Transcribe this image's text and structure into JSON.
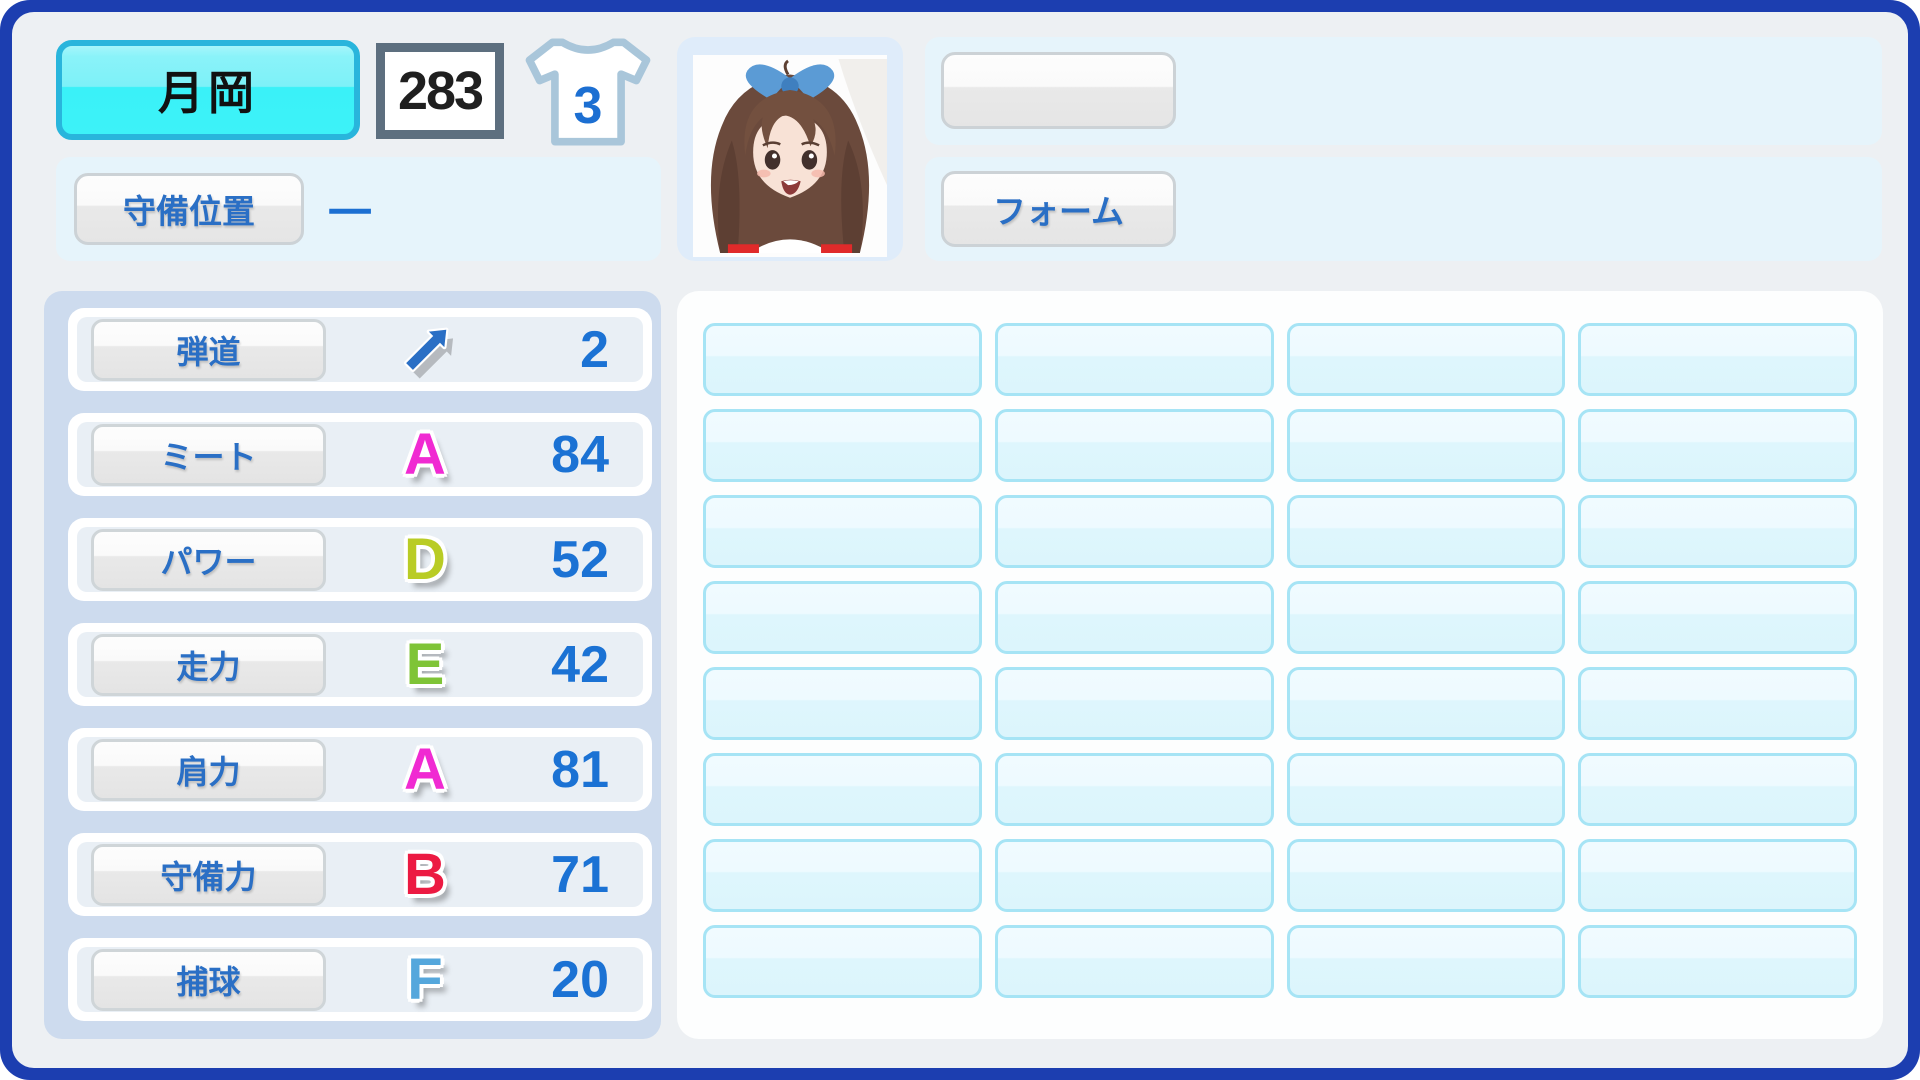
{
  "header": {
    "name": "月岡",
    "id_number": "283",
    "jersey_number": "3",
    "position": {
      "label": "守備位置",
      "value": "一"
    },
    "form": {
      "label": "フォーム"
    },
    "blank_tag": ""
  },
  "stats": [
    {
      "label": "弾道",
      "value": "2",
      "grade": "",
      "grade_color": "",
      "icon": "up-right-arrow"
    },
    {
      "label": "ミート",
      "value": "84",
      "grade": "A",
      "grade_color": "#f02ad2"
    },
    {
      "label": "パワー",
      "value": "52",
      "grade": "D",
      "grade_color": "#b9cc25"
    },
    {
      "label": "走力",
      "value": "42",
      "grade": "E",
      "grade_color": "#7fc437"
    },
    {
      "label": "肩力",
      "value": "81",
      "grade": "A",
      "grade_color": "#f02ad2"
    },
    {
      "label": "守備力",
      "value": "71",
      "grade": "B",
      "grade_color": "#ec1a42"
    },
    {
      "label": "捕球",
      "value": "20",
      "grade": "F",
      "grade_color": "#55a7dc"
    }
  ],
  "skills_grid": {
    "rows": 8,
    "cols": 4
  },
  "colors": {
    "frame": "#1c3eb0",
    "name_plate_cyan": "#3af1f8",
    "label_blue": "#2a6fc5",
    "value_blue": "#1b72d4"
  }
}
